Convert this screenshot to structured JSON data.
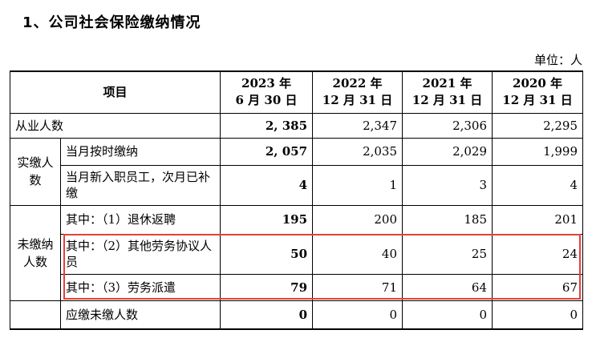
{
  "heading": "1、公司社会保险缴纳情况",
  "unit": "单位：人",
  "columns": {
    "item": "项目",
    "c2023": "2023 年<br>6 月 30 日",
    "c2023_l1": "2023 年",
    "c2023_l2": "6 月 30 日",
    "c2022_l1": "2022 年",
    "c2022_l2": "12 月 31 日",
    "c2021_l1": "2021 年",
    "c2021_l2": "12 月 31 日",
    "c2020_l1": "2020 年",
    "c2020_l2": "12 月 31 日"
  },
  "rows": {
    "employees": {
      "label": "从业人数",
      "v2023": "2, 385",
      "v2022": "2,347",
      "v2021": "2,306",
      "v2020": "2,295"
    },
    "paid_group": "实缴人数",
    "paid_on_time": {
      "label": "当月按时缴纳",
      "v2023": "2, 057",
      "v2022": "2,035",
      "v2021": "2,029",
      "v2020": "1,999"
    },
    "new_hires": {
      "label": "当月新入职员工，次月已补缴",
      "v2023": "4",
      "v2022": "1",
      "v2021": "3",
      "v2020": "4"
    },
    "unpaid_group": "未缴纳人数",
    "retired": {
      "label": "其中：（1）退休返聘",
      "v2023": "195",
      "v2022": "200",
      "v2021": "185",
      "v2020": "201"
    },
    "other_labor": {
      "label": "其中：（2）其他劳务协议人员",
      "v2023": "50",
      "v2022": "40",
      "v2021": "25",
      "v2020": "24"
    },
    "dispatch": {
      "label": "其中：（3）劳务派遣",
      "v2023": "79",
      "v2022": "71",
      "v2021": "64",
      "v2020": "67"
    },
    "should_unpaid": {
      "label": "应缴未缴人数",
      "v2023": "0",
      "v2022": "0",
      "v2021": "0",
      "v2020": "0"
    }
  },
  "colors": {
    "highlight": "#e4403a"
  }
}
